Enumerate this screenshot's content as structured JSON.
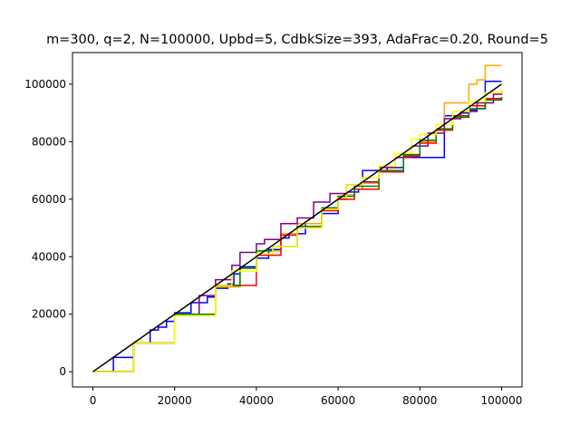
{
  "chart_data": {
    "type": "line",
    "title": "m=300, q=2, N=100000, Upbd=5, CdbkSize=393, AdaFrac=0.20, Round=5",
    "xlabel": "",
    "ylabel": "",
    "xlim": [
      -5000,
      105000
    ],
    "ylim": [
      -5300,
      111000
    ],
    "xticks": [
      0,
      20000,
      40000,
      60000,
      80000,
      100000
    ],
    "xtick_labels": [
      "0",
      "20000",
      "40000",
      "60000",
      "80000",
      "100000"
    ],
    "yticks": [
      0,
      20000,
      40000,
      60000,
      80000,
      100000
    ],
    "ytick_labels": [
      "0",
      "20000",
      "40000",
      "60000",
      "80000",
      "100000"
    ],
    "grid": false,
    "legend": "none",
    "series": [
      {
        "color": "#0000ff",
        "step": true,
        "x": [
          0,
          5000,
          10000,
          14000,
          16000,
          18000,
          20000,
          24000,
          28000,
          30000,
          33000,
          34500,
          36000,
          40000,
          43000,
          46000,
          48000,
          52000,
          56000,
          60000,
          62000,
          65000,
          66000,
          70000,
          72000,
          76000,
          82000,
          86000,
          90000,
          92000,
          94000,
          96000,
          98000,
          100000
        ],
        "y": [
          0,
          5000,
          10000,
          14500,
          15500,
          17500,
          20500,
          24000,
          26000,
          29000,
          30500,
          34000,
          36500,
          39500,
          42500,
          46500,
          48000,
          51500,
          55000,
          60000,
          62500,
          63500,
          70000,
          69500,
          71000,
          74500,
          74500,
          89000,
          90000,
          91000,
          91500,
          101000,
          101000,
          101000
        ]
      },
      {
        "color": "#ffa500",
        "step": true,
        "x": [
          0,
          10000,
          20000,
          30000,
          36000,
          40000,
          46000,
          50000,
          56000,
          60000,
          62000,
          64000,
          66000,
          70000,
          76000,
          80000,
          84000,
          86000,
          90000,
          92000,
          94000,
          96000,
          98000,
          100000
        ],
        "y": [
          0,
          10000,
          20000,
          29500,
          36000,
          42000,
          48000,
          51500,
          56500,
          61000,
          61500,
          63500,
          65500,
          69500,
          75500,
          80000,
          84500,
          93500,
          93500,
          100000,
          101500,
          106500,
          106500,
          106500
        ]
      },
      {
        "color": "#800080",
        "step": true,
        "x": [
          0,
          10000,
          20000,
          26000,
          30000,
          34000,
          36000,
          40000,
          42000,
          46000,
          50000,
          54000,
          58000,
          62000,
          66000,
          70000,
          74000,
          78000,
          82000,
          86000,
          90000,
          94000,
          98000,
          100000
        ],
        "y": [
          0,
          10000,
          20000,
          26500,
          32000,
          37000,
          41500,
          44500,
          46000,
          51500,
          53500,
          59000,
          62000,
          65000,
          66000,
          71000,
          74500,
          78500,
          83000,
          88000,
          90500,
          93500,
          96500,
          98000
        ]
      },
      {
        "color": "#ff0000",
        "step": true,
        "x": [
          0,
          10000,
          20000,
          30000,
          40000,
          46000,
          50000,
          56000,
          60000,
          64000,
          70000,
          76000,
          80000,
          84000,
          88000,
          92000,
          96000,
          100000
        ],
        "y": [
          0,
          10000,
          20000,
          30000,
          40500,
          47500,
          50500,
          56000,
          60000,
          63500,
          69500,
          75000,
          79500,
          84000,
          89000,
          92500,
          95000,
          95500
        ]
      },
      {
        "color": "#008000",
        "step": true,
        "x": [
          0,
          10000,
          20000,
          30000,
          36000,
          40000,
          44000,
          50000,
          56000,
          60000,
          64000,
          70000,
          76000,
          80000,
          84000,
          88000,
          92000,
          96000,
          100000
        ],
        "y": [
          0,
          10000,
          20000,
          30000,
          36000,
          42000,
          43500,
          50500,
          57000,
          61000,
          64500,
          70000,
          75500,
          80500,
          84500,
          88500,
          91500,
          94500,
          95500
        ]
      },
      {
        "color": "#ffff00",
        "step": true,
        "x": [
          0,
          10000,
          20000,
          30000,
          34000,
          40000,
          44000,
          50000,
          56000,
          60000,
          62000,
          66000,
          70000,
          74000,
          78000,
          80000,
          84000,
          88000,
          92000,
          96000,
          100000
        ],
        "y": [
          0,
          10000,
          19500,
          30000,
          35000,
          41000,
          43500,
          50000,
          56500,
          60500,
          65000,
          67500,
          71500,
          76000,
          81000,
          82500,
          86000,
          90500,
          94000,
          97000,
          99000
        ]
      },
      {
        "color": "#000000",
        "step": false,
        "x": [
          0,
          100000
        ],
        "y": [
          0,
          100000
        ]
      }
    ]
  }
}
